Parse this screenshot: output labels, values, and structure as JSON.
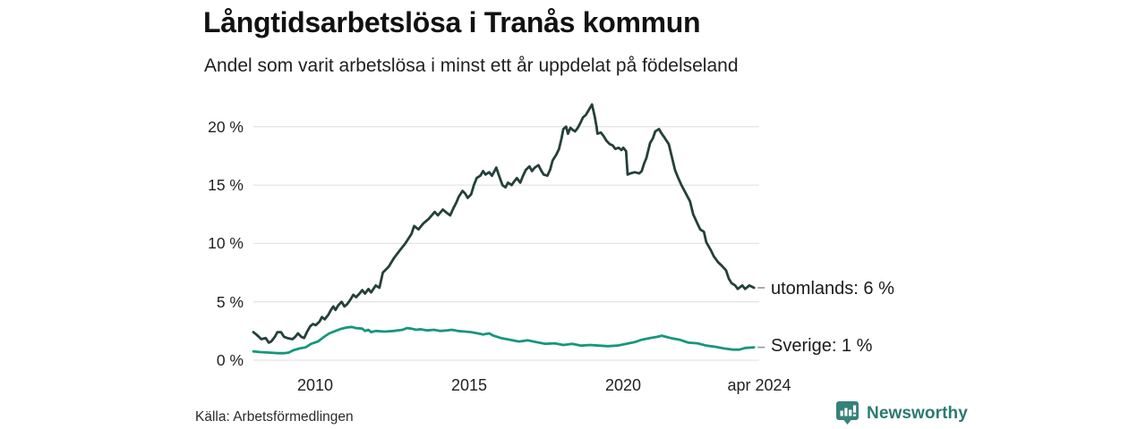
{
  "header": {
    "title": "Långtidsarbetslösa i Tranås kommun",
    "subtitle": "Andel som varit arbetslösa i minst ett år uppdelat på födelseland"
  },
  "footer": {
    "source": "Källa: Arbetsförmedlingen",
    "brand": "Newsworthy",
    "brand_icon": "newsworthy-chart-bubble-icon"
  },
  "colors": {
    "utomlands_line": "#24403a",
    "sverige_line": "#17967e",
    "grid": "#e4e4e4",
    "legend_tick": "#9b9b9b",
    "text": "#1a1a1a",
    "brand": "#2b7a72",
    "brand_icon_fill": "#35827a"
  },
  "chart_data": {
    "type": "line",
    "title": "Långtidsarbetslösa i Tranås kommun",
    "subtitle": "Andel som varit arbetslösa i minst ett år uppdelat på födelseland",
    "xlabel": "",
    "ylabel": "",
    "grid": true,
    "legend_position": "right-of-line-end",
    "xlim": [
      2008.0,
      2024.45
    ],
    "ylim": [
      0,
      22.2
    ],
    "yticks": [
      {
        "v": 0,
        "label": "0 %"
      },
      {
        "v": 5,
        "label": "5 %"
      },
      {
        "v": 10,
        "label": "10 %"
      },
      {
        "v": 15,
        "label": "15 %"
      },
      {
        "v": 20,
        "label": "20 %"
      }
    ],
    "xticks": [
      {
        "v": 2010,
        "label": "2010"
      },
      {
        "v": 2015,
        "label": "2015"
      },
      {
        "v": 2020,
        "label": "2020"
      },
      {
        "v": 2024.29,
        "label": "apr 2024"
      }
    ],
    "series": [
      {
        "name": "utomlands",
        "label": "utomlands: 6 %",
        "end_value": "6 %",
        "color": "#24403a",
        "points": [
          [
            2008.0,
            2.4
          ],
          [
            2008.1,
            2.2
          ],
          [
            2008.26,
            1.8
          ],
          [
            2008.4,
            1.9
          ],
          [
            2008.5,
            1.5
          ],
          [
            2008.58,
            1.6
          ],
          [
            2008.7,
            2.0
          ],
          [
            2008.78,
            2.4
          ],
          [
            2008.9,
            2.4
          ],
          [
            2009.0,
            2.0
          ],
          [
            2009.1,
            1.9
          ],
          [
            2009.27,
            1.8
          ],
          [
            2009.36,
            2.0
          ],
          [
            2009.45,
            2.3
          ],
          [
            2009.56,
            2.0
          ],
          [
            2009.65,
            1.9
          ],
          [
            2009.74,
            2.4
          ],
          [
            2009.85,
            2.9
          ],
          [
            2009.94,
            3.1
          ],
          [
            2010.03,
            3.0
          ],
          [
            2010.15,
            3.3
          ],
          [
            2010.23,
            3.7
          ],
          [
            2010.32,
            3.5
          ],
          [
            2010.44,
            3.9
          ],
          [
            2010.52,
            4.3
          ],
          [
            2010.6,
            4.6
          ],
          [
            2010.67,
            4.3
          ],
          [
            2010.76,
            4.7
          ],
          [
            2010.87,
            5.0
          ],
          [
            2010.96,
            4.6
          ],
          [
            2011.05,
            4.8
          ],
          [
            2011.16,
            5.2
          ],
          [
            2011.25,
            5.6
          ],
          [
            2011.34,
            5.4
          ],
          [
            2011.45,
            5.7
          ],
          [
            2011.54,
            6.0
          ],
          [
            2011.63,
            5.7
          ],
          [
            2011.74,
            6.1
          ],
          [
            2011.83,
            5.8
          ],
          [
            2011.98,
            6.4
          ],
          [
            2012.1,
            6.2
          ],
          [
            2012.21,
            7.5
          ],
          [
            2012.4,
            8.0
          ],
          [
            2012.56,
            8.7
          ],
          [
            2012.76,
            9.4
          ],
          [
            2012.94,
            10.0
          ],
          [
            2013.14,
            10.8
          ],
          [
            2013.23,
            11.5
          ],
          [
            2013.37,
            11.2
          ],
          [
            2013.52,
            11.7
          ],
          [
            2013.7,
            12.1
          ],
          [
            2013.9,
            12.7
          ],
          [
            2014.0,
            12.4
          ],
          [
            2014.16,
            12.9
          ],
          [
            2014.3,
            12.6
          ],
          [
            2014.4,
            12.4
          ],
          [
            2014.5,
            13.0
          ],
          [
            2014.6,
            13.5
          ],
          [
            2014.68,
            14.0
          ],
          [
            2014.8,
            14.5
          ],
          [
            2014.88,
            14.3
          ],
          [
            2014.97,
            13.9
          ],
          [
            2015.08,
            14.2
          ],
          [
            2015.17,
            15.0
          ],
          [
            2015.26,
            15.6
          ],
          [
            2015.38,
            15.8
          ],
          [
            2015.47,
            16.2
          ],
          [
            2015.55,
            15.9
          ],
          [
            2015.67,
            16.1
          ],
          [
            2015.76,
            15.8
          ],
          [
            2015.84,
            16.2
          ],
          [
            2015.9,
            16.5
          ],
          [
            2015.99,
            15.8
          ],
          [
            2016.1,
            15.0
          ],
          [
            2016.2,
            14.8
          ],
          [
            2016.28,
            15.2
          ],
          [
            2016.4,
            15.0
          ],
          [
            2016.48,
            15.3
          ],
          [
            2016.57,
            15.6
          ],
          [
            2016.68,
            15.2
          ],
          [
            2016.77,
            15.8
          ],
          [
            2016.86,
            16.3
          ],
          [
            2016.98,
            16.6
          ],
          [
            2017.06,
            16.2
          ],
          [
            2017.15,
            16.5
          ],
          [
            2017.27,
            16.7
          ],
          [
            2017.35,
            16.3
          ],
          [
            2017.44,
            15.9
          ],
          [
            2017.56,
            15.8
          ],
          [
            2017.65,
            16.3
          ],
          [
            2017.73,
            17.1
          ],
          [
            2017.85,
            17.6
          ],
          [
            2017.94,
            18.1
          ],
          [
            2018.02,
            19.0
          ],
          [
            2018.08,
            19.8
          ],
          [
            2018.17,
            20.0
          ],
          [
            2018.23,
            19.4
          ],
          [
            2018.31,
            19.9
          ],
          [
            2018.4,
            19.7
          ],
          [
            2018.46,
            19.6
          ],
          [
            2018.55,
            19.9
          ],
          [
            2018.63,
            20.3
          ],
          [
            2018.72,
            20.8
          ],
          [
            2018.81,
            21.0
          ],
          [
            2018.9,
            21.4
          ],
          [
            2019.01,
            21.9
          ],
          [
            2019.1,
            20.9
          ],
          [
            2019.16,
            20.0
          ],
          [
            2019.19,
            19.4
          ],
          [
            2019.3,
            19.5
          ],
          [
            2019.39,
            19.2
          ],
          [
            2019.48,
            18.8
          ],
          [
            2019.59,
            18.5
          ],
          [
            2019.68,
            18.4
          ],
          [
            2019.77,
            18.1
          ],
          [
            2019.88,
            18.2
          ],
          [
            2019.97,
            18.0
          ],
          [
            2020.03,
            18.2
          ],
          [
            2020.12,
            17.9
          ],
          [
            2020.17,
            15.9
          ],
          [
            2020.26,
            16.0
          ],
          [
            2020.4,
            16.1
          ],
          [
            2020.55,
            16.0
          ],
          [
            2020.63,
            16.2
          ],
          [
            2020.7,
            16.8
          ],
          [
            2020.78,
            17.3
          ],
          [
            2020.9,
            18.6
          ],
          [
            2020.99,
            19.0
          ],
          [
            2021.07,
            19.6
          ],
          [
            2021.19,
            19.8
          ],
          [
            2021.28,
            19.4
          ],
          [
            2021.36,
            19.1
          ],
          [
            2021.51,
            18.5
          ],
          [
            2021.71,
            16.3
          ],
          [
            2021.8,
            15.7
          ],
          [
            2021.92,
            15.0
          ],
          [
            2022.06,
            14.3
          ],
          [
            2022.2,
            13.6
          ],
          [
            2022.3,
            12.5
          ],
          [
            2022.44,
            11.7
          ],
          [
            2022.53,
            11.2
          ],
          [
            2022.65,
            11.0
          ],
          [
            2022.73,
            10.1
          ],
          [
            2022.88,
            9.4
          ],
          [
            2022.97,
            8.9
          ],
          [
            2023.11,
            8.4
          ],
          [
            2023.23,
            8.1
          ],
          [
            2023.37,
            7.7
          ],
          [
            2023.46,
            7.0
          ],
          [
            2023.55,
            6.6
          ],
          [
            2023.67,
            6.4
          ],
          [
            2023.75,
            6.1
          ],
          [
            2023.9,
            6.4
          ],
          [
            2023.99,
            6.1
          ],
          [
            2024.13,
            6.4
          ],
          [
            2024.28,
            6.2
          ]
        ]
      },
      {
        "name": "sverige",
        "label": "Sverige: 1 %",
        "end_value": "1 %",
        "color": "#17967e",
        "points": [
          [
            2008.0,
            0.75
          ],
          [
            2008.2,
            0.7
          ],
          [
            2008.5,
            0.65
          ],
          [
            2008.8,
            0.6
          ],
          [
            2009.0,
            0.6
          ],
          [
            2009.15,
            0.65
          ],
          [
            2009.3,
            0.85
          ],
          [
            2009.5,
            1.0
          ],
          [
            2009.7,
            1.1
          ],
          [
            2009.88,
            1.4
          ],
          [
            2010.1,
            1.6
          ],
          [
            2010.3,
            2.0
          ],
          [
            2010.47,
            2.3
          ],
          [
            2010.67,
            2.5
          ],
          [
            2010.87,
            2.7
          ],
          [
            2011.05,
            2.8
          ],
          [
            2011.2,
            2.85
          ],
          [
            2011.34,
            2.75
          ],
          [
            2011.54,
            2.7
          ],
          [
            2011.63,
            2.5
          ],
          [
            2011.74,
            2.6
          ],
          [
            2011.83,
            2.4
          ],
          [
            2011.98,
            2.5
          ],
          [
            2012.27,
            2.45
          ],
          [
            2012.56,
            2.5
          ],
          [
            2012.85,
            2.6
          ],
          [
            2013.0,
            2.75
          ],
          [
            2013.14,
            2.7
          ],
          [
            2013.3,
            2.6
          ],
          [
            2013.43,
            2.65
          ],
          [
            2013.66,
            2.55
          ],
          [
            2013.87,
            2.6
          ],
          [
            2014.07,
            2.5
          ],
          [
            2014.3,
            2.55
          ],
          [
            2014.45,
            2.6
          ],
          [
            2014.65,
            2.5
          ],
          [
            2014.88,
            2.45
          ],
          [
            2015.08,
            2.4
          ],
          [
            2015.3,
            2.3
          ],
          [
            2015.47,
            2.2
          ],
          [
            2015.67,
            2.3
          ],
          [
            2015.81,
            2.1
          ],
          [
            2016.05,
            1.9
          ],
          [
            2016.34,
            1.75
          ],
          [
            2016.63,
            1.6
          ],
          [
            2016.92,
            1.7
          ],
          [
            2017.2,
            1.55
          ],
          [
            2017.5,
            1.4
          ],
          [
            2017.8,
            1.45
          ],
          [
            2018.08,
            1.3
          ],
          [
            2018.37,
            1.4
          ],
          [
            2018.66,
            1.25
          ],
          [
            2018.95,
            1.3
          ],
          [
            2019.24,
            1.25
          ],
          [
            2019.53,
            1.2
          ],
          [
            2019.83,
            1.25
          ],
          [
            2020.12,
            1.4
          ],
          [
            2020.4,
            1.55
          ],
          [
            2020.63,
            1.75
          ],
          [
            2020.9,
            1.9
          ],
          [
            2021.13,
            2.0
          ],
          [
            2021.28,
            2.1
          ],
          [
            2021.42,
            2.0
          ],
          [
            2021.57,
            1.9
          ],
          [
            2021.86,
            1.75
          ],
          [
            2022.15,
            1.5
          ],
          [
            2022.44,
            1.45
          ],
          [
            2022.73,
            1.25
          ],
          [
            2023.02,
            1.15
          ],
          [
            2023.31,
            1.0
          ],
          [
            2023.6,
            0.9
          ],
          [
            2023.8,
            0.9
          ],
          [
            2024.0,
            1.05
          ],
          [
            2024.28,
            1.1
          ]
        ]
      }
    ]
  }
}
